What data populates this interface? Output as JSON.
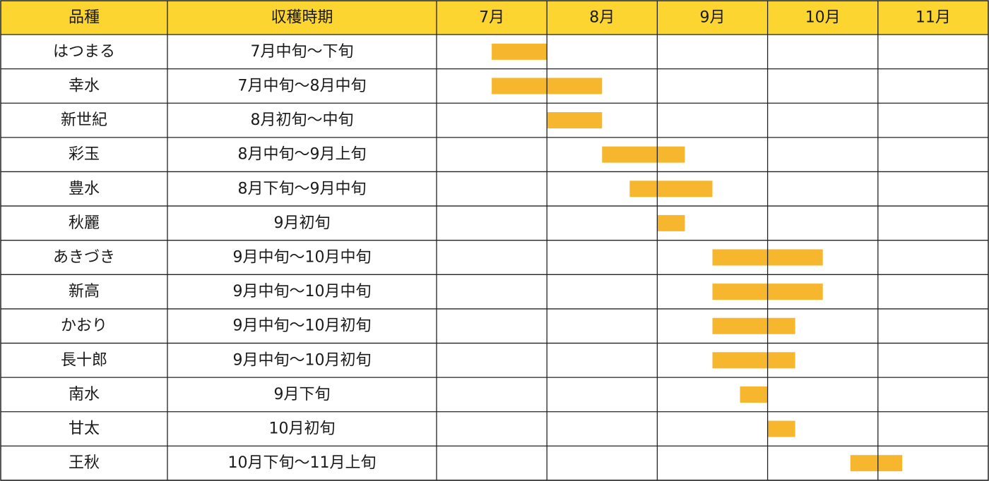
{
  "colors": {
    "header_bg": "#fcd530",
    "bar": "#f6b62d",
    "grid": "#222222",
    "text": "#1a1a1a"
  },
  "headers": {
    "variety": "品種",
    "harvest": "収穫時期"
  },
  "months": [
    "7月",
    "8月",
    "9月",
    "10月",
    "11月"
  ],
  "chart_data": {
    "type": "gantt",
    "x_unit": "month",
    "x_range": [
      7,
      12
    ],
    "rows": [
      {
        "variety": "はつまる",
        "harvest": "7月中旬～下旬",
        "start": 7.5,
        "end": 8.0
      },
      {
        "variety": "幸水",
        "harvest": "7月中旬～8月中旬",
        "start": 7.5,
        "end": 8.5
      },
      {
        "variety": "新世紀",
        "harvest": "8月初旬～中旬",
        "start": 8.0,
        "end": 8.5
      },
      {
        "variety": "彩玉",
        "harvest": "8月中旬～9月上旬",
        "start": 8.5,
        "end": 9.25
      },
      {
        "variety": "豊水",
        "harvest": "8月下旬～9月中旬",
        "start": 8.75,
        "end": 9.5
      },
      {
        "variety": "秋麗",
        "harvest": "9月初旬",
        "start": 9.0,
        "end": 9.25
      },
      {
        "variety": "あきづき",
        "harvest": "9月中旬～10月中旬",
        "start": 9.5,
        "end": 10.5
      },
      {
        "variety": "新高",
        "harvest": "9月中旬～10月中旬",
        "start": 9.5,
        "end": 10.5
      },
      {
        "variety": "かおり",
        "harvest": "9月中旬～10月初旬",
        "start": 9.5,
        "end": 10.25
      },
      {
        "variety": "長十郎",
        "harvest": "9月中旬～10月初旬",
        "start": 9.5,
        "end": 10.25
      },
      {
        "variety": "南水",
        "harvest": "9月下旬",
        "start": 9.75,
        "end": 10.0
      },
      {
        "variety": "甘太",
        "harvest": "10月初旬",
        "start": 10.0,
        "end": 10.25
      },
      {
        "variety": "王秋",
        "harvest": "10月下旬～11月上旬",
        "start": 10.75,
        "end": 11.22
      }
    ]
  }
}
